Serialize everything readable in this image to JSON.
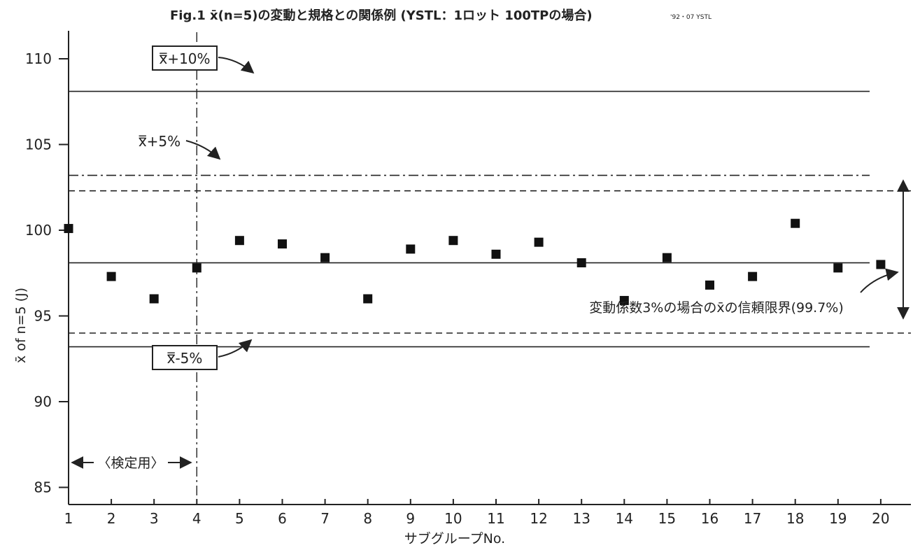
{
  "chart_data": {
    "type": "scatter",
    "title": "Fig.1 x̄(n=5)の変動と規格との関係例 (YSTL：1ロット 100TPの場合)",
    "credit": "'92・07 YSTL",
    "xlabel": "サブグループNo.",
    "ylabel": "x̄ of n=5 (J)",
    "xlim": [
      1,
      21
    ],
    "ylim": [
      84,
      111
    ],
    "x_ticks": [
      1,
      2,
      3,
      4,
      5,
      6,
      7,
      8,
      9,
      10,
      11,
      12,
      13,
      14,
      15,
      16,
      17,
      18,
      19,
      20
    ],
    "y_ticks": [
      85,
      90,
      95,
      100,
      105,
      110
    ],
    "grid": false,
    "series": [
      {
        "x": [
          1,
          2,
          3,
          4,
          5,
          6,
          7,
          8,
          9,
          10,
          11,
          12,
          13,
          14,
          15,
          16,
          17,
          18,
          19,
          20
        ],
        "y": [
          100.1,
          97.3,
          96.0,
          97.8,
          99.4,
          99.2,
          98.4,
          96.0,
          98.9,
          99.4,
          98.6,
          99.3,
          98.1,
          95.9,
          98.4,
          96.8,
          97.3,
          100.4,
          97.8,
          98.0
        ]
      }
    ],
    "reference_lines": [
      {
        "y": 108.1,
        "style": "solid",
        "label": "x̿+10%"
      },
      {
        "y": 103.2,
        "style": "dashdot",
        "label": "x̿+5%"
      },
      {
        "y": 102.3,
        "style": "dashed",
        "label": ""
      },
      {
        "y": 98.1,
        "style": "solid",
        "label": ""
      },
      {
        "y": 94.0,
        "style": "dashed",
        "label": ""
      },
      {
        "y": 93.2,
        "style": "solid",
        "label": "x̿-5%"
      }
    ],
    "vertical_line": {
      "x": 4,
      "style": "dashdot"
    },
    "annotations": {
      "calibration": "〈検定用〉",
      "confidence": "変動係数3%の場合のx̄の信頼限界(99.7%)"
    }
  }
}
